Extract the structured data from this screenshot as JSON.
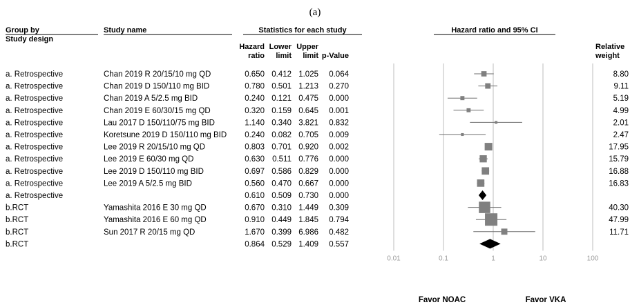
{
  "panel_label": "(a)",
  "headers": {
    "group_by": "Group by",
    "study_design": "Study design",
    "study_name": "Study name",
    "statistics": "Statistics for each study",
    "hazard": [
      "Hazard",
      "ratio"
    ],
    "lower": [
      "Lower",
      "limit"
    ],
    "upper": [
      "Upper",
      "limit"
    ],
    "pvalue": "p-Value",
    "ci_header": "Hazard ratio and 95% CI",
    "relative": [
      "Relative",
      "weight"
    ]
  },
  "favor_left": "Favor NOAC",
  "favor_right": "Favor VKA",
  "chart_data": {
    "type": "forest",
    "xscale": "log",
    "xlim": [
      0.01,
      100
    ],
    "xticks": [
      "0.01",
      "0.1",
      "1",
      "10",
      "100"
    ],
    "xtick_values": [
      0.01,
      0.1,
      1,
      10,
      100
    ],
    "rows": [
      {
        "group": "a. Retrospective",
        "study": "Chan 2019 R 20/15/10 mg QD",
        "hr": "0.650",
        "lower": "0.412",
        "upper": "1.025",
        "p": "0.064",
        "weight": "8.80",
        "w": 8.8,
        "summary": false
      },
      {
        "group": "a. Retrospective",
        "study": "Chan 2019 D 150/110 mg BID",
        "hr": "0.780",
        "lower": "0.501",
        "upper": "1.213",
        "p": "0.270",
        "weight": "9.11",
        "w": 9.11,
        "summary": false
      },
      {
        "group": "a. Retrospective",
        "study": "Chan 2019 A 5/2.5 mg BID",
        "hr": "0.240",
        "lower": "0.121",
        "upper": "0.475",
        "p": "0.000",
        "weight": "5.19",
        "w": 5.19,
        "summary": false
      },
      {
        "group": "a. Retrospective",
        "study": "Chan 2019 E 60/30/15 mg QD",
        "hr": "0.320",
        "lower": "0.159",
        "upper": "0.645",
        "p": "0.001",
        "weight": "4.99",
        "w": 4.99,
        "summary": false
      },
      {
        "group": "a. Retrospective",
        "study": "Lau 2017 D 150/110/75 mg BID",
        "hr": "1.140",
        "lower": "0.340",
        "upper": "3.821",
        "p": "0.832",
        "weight": "2.01",
        "w": 2.01,
        "summary": false
      },
      {
        "group": "a. Retrospective",
        "study": "Koretsune 2019 D 150/110 mg BID",
        "hr": "0.240",
        "lower": "0.082",
        "upper": "0.705",
        "p": "0.009",
        "weight": "2.47",
        "w": 2.47,
        "summary": false
      },
      {
        "group": "a. Retrospective",
        "study": "Lee 2019 R 20/15/10 mg QD",
        "hr": "0.803",
        "lower": "0.701",
        "upper": "0.920",
        "p": "0.002",
        "weight": "17.95",
        "w": 17.95,
        "summary": false
      },
      {
        "group": "a. Retrospective",
        "study": "Lee 2019 E 60/30 mg QD",
        "hr": "0.630",
        "lower": "0.511",
        "upper": "0.776",
        "p": "0.000",
        "weight": "15.79",
        "w": 15.79,
        "summary": false
      },
      {
        "group": "a. Retrospective",
        "study": "Lee 2019 D 150/110 mg BID",
        "hr": "0.697",
        "lower": "0.586",
        "upper": "0.829",
        "p": "0.000",
        "weight": "16.88",
        "w": 16.88,
        "summary": false
      },
      {
        "group": "a. Retrospective",
        "study": "Lee 2019 A 5/2.5 mg BID",
        "hr": "0.560",
        "lower": "0.470",
        "upper": "0.667",
        "p": "0.000",
        "weight": "16.83",
        "w": 16.83,
        "summary": false
      },
      {
        "group": "a. Retrospective",
        "study": "",
        "hr": "0.610",
        "lower": "0.509",
        "upper": "0.730",
        "p": "0.000",
        "weight": "",
        "w": 0,
        "summary": true
      },
      {
        "group": "b.RCT",
        "study": "Yamashita 2016 E 30 mg QD",
        "hr": "0.670",
        "lower": "0.310",
        "upper": "1.449",
        "p": "0.309",
        "weight": "40.30",
        "w": 40.3,
        "summary": false
      },
      {
        "group": "b.RCT",
        "study": "Yamashita 2016 E 60 mg QD",
        "hr": "0.910",
        "lower": "0.449",
        "upper": "1.845",
        "p": "0.794",
        "weight": "47.99",
        "w": 47.99,
        "summary": false
      },
      {
        "group": "b.RCT",
        "study": "Sun 2017 R 20/15 mg QD",
        "hr": "1.670",
        "lower": "0.399",
        "upper": "6.986",
        "p": "0.482",
        "weight": "11.71",
        "w": 11.71,
        "summary": false
      },
      {
        "group": "b.RCT",
        "study": "",
        "hr": "0.864",
        "lower": "0.529",
        "upper": "1.409",
        "p": "0.557",
        "weight": "",
        "w": 0,
        "summary": true
      }
    ]
  },
  "colors": {
    "marker": "#808080",
    "ci_line": "#6e6e6e",
    "diamond": "#000000",
    "axis": "#bdbdbd",
    "tick": "#9a9a9a"
  }
}
